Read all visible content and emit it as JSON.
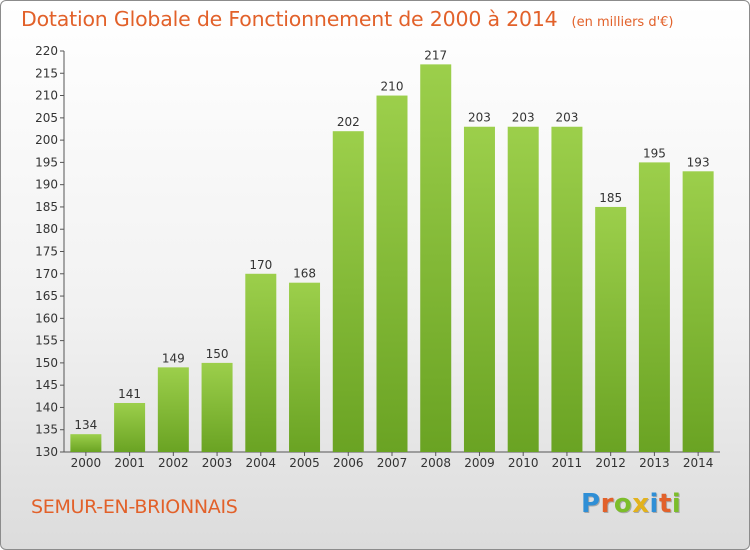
{
  "title": {
    "main": "Dotation Globale de Fonctionnement de 2000 à 2014",
    "unit": "(en milliers d'€)"
  },
  "commune": "SEMUR-EN-BRIONNAIS",
  "logo": {
    "letters": [
      "P",
      "r",
      "o",
      "x",
      "i",
      "t",
      "i"
    ],
    "colors": [
      "#2f8fd6",
      "#e2612a",
      "#7cbd2b",
      "#e2b21d",
      "#2f8fd6",
      "#e2612a",
      "#7cbd2b"
    ]
  },
  "colors": {
    "bar_top": "#9ccf4b",
    "bar_bottom": "#6aa323",
    "title": "#e2612a"
  },
  "chart_data": {
    "type": "bar",
    "categories": [
      "2000",
      "2001",
      "2002",
      "2003",
      "2004",
      "2005",
      "2006",
      "2007",
      "2008",
      "2009",
      "2010",
      "2011",
      "2012",
      "2013",
      "2014"
    ],
    "values": [
      134,
      141,
      149,
      150,
      170,
      168,
      202,
      210,
      217,
      203,
      203,
      203,
      185,
      195,
      193
    ],
    "title": "Dotation Globale de Fonctionnement de 2000 à 2014",
    "subtitle": "(en milliers d'€)",
    "xlabel": "",
    "ylabel": "",
    "ylim": [
      130,
      220
    ],
    "yticks": [
      130,
      135,
      140,
      145,
      150,
      155,
      160,
      165,
      170,
      175,
      180,
      185,
      190,
      195,
      200,
      205,
      210,
      215,
      220
    ],
    "grid": false,
    "data_labels": true
  }
}
